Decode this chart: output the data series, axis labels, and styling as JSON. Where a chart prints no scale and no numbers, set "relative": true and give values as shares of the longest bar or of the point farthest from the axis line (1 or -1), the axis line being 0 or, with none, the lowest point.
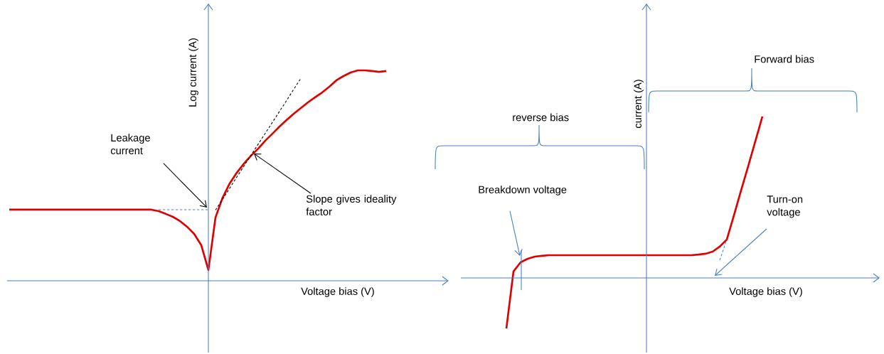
{
  "chart_data": [
    {
      "type": "line",
      "relative": true,
      "ylabel": "Log current (A)",
      "xlabel": "Voltage bias (V)",
      "categories": [
        null,
        null,
        null,
        null,
        null,
        null,
        null,
        null,
        null,
        null,
        null,
        null,
        null,
        null,
        null,
        null,
        null,
        null,
        null,
        null,
        null,
        null,
        null,
        null,
        null,
        null,
        null,
        null,
        null,
        null,
        null,
        null,
        null,
        null,
        null,
        null,
        null,
        null,
        null,
        null,
        null,
        null,
        null,
        null,
        null,
        null,
        null,
        null,
        null,
        null,
        null,
        null,
        null,
        null
      ],
      "series": [
        {
          "color": "#e00000",
          "values": [
            0.338,
            0.338,
            0.338,
            0.338,
            0.338,
            0.338,
            0.338,
            0.338,
            0.338,
            0.338,
            0.338,
            0.338,
            0.338,
            0.338,
            0.338,
            0.338,
            0.338,
            0.338,
            0.338,
            0.338,
            0.338,
            0.331,
            0.318,
            0.304,
            0.284,
            0.257,
            0.223,
            0.169,
            0.051,
            0.301,
            0.395,
            0.463,
            0.514,
            0.557,
            0.595,
            0.628,
            0.666,
            0.699,
            0.733,
            0.764,
            0.794,
            0.821,
            0.848,
            0.872,
            0.895,
            0.922,
            0.953,
            0.973,
            0.99,
            1.0,
            1.0,
            0.997,
            0.993,
            0.997
          ]
        },
        {
          "color": "#000000",
          "line_style": "dashed",
          "values": [
            null,
            null,
            null,
            null,
            null,
            null,
            null,
            null,
            null,
            null,
            null,
            null,
            null,
            null,
            null,
            null,
            null,
            null,
            null,
            null,
            null,
            null,
            null,
            null,
            null,
            null,
            null,
            null,
            null,
            0.336,
            0.388,
            0.44,
            0.493,
            0.545,
            0.597,
            0.649,
            0.701,
            0.753,
            0.805,
            0.857,
            0.91,
            0.962,
            null,
            null,
            null,
            null,
            null,
            null,
            null,
            null,
            null,
            null,
            null,
            null
          ]
        },
        {
          "color": "#4f81bd",
          "line_style": "dashed",
          "values": [
            null,
            null,
            null,
            null,
            null,
            null,
            null,
            null,
            null,
            null,
            null,
            null,
            null,
            null,
            null,
            null,
            null,
            null,
            null,
            null,
            null,
            0.338,
            0.338,
            0.338,
            0.338,
            0.338,
            0.338,
            0.338,
            0.338,
            null,
            null,
            null,
            null,
            null,
            null,
            null,
            null,
            null,
            null,
            null,
            null,
            null,
            null,
            null,
            null,
            null,
            null,
            null,
            null,
            null,
            null,
            null,
            null,
            null
          ]
        }
      ],
      "annotations": [
        "Leakage current",
        "Slope gives ideality factor"
      ]
    },
    {
      "type": "line",
      "relative": true,
      "ylabel": "current (A)",
      "xlabel": "Voltage bias (V)",
      "categories": [
        null,
        null,
        null,
        null,
        null,
        null,
        null,
        null,
        null,
        null,
        null,
        null,
        null,
        null,
        null,
        null,
        null,
        null,
        null,
        null,
        null,
        null,
        null,
        null,
        null,
        null,
        null,
        null,
        null,
        null,
        null,
        null,
        null,
        null,
        null,
        null,
        null
      ],
      "series": [
        {
          "color": "#e00000",
          "values": [
            -0.313,
            0.04,
            0.097,
            0.119,
            0.132,
            0.137,
            0.141,
            0.141,
            0.141,
            0.141,
            0.141,
            0.141,
            0.141,
            0.141,
            0.141,
            0.141,
            0.141,
            0.141,
            0.141,
            0.141,
            0.141,
            0.141,
            0.141,
            0.141,
            0.141,
            0.141,
            0.141,
            0.145,
            0.15,
            0.163,
            0.194,
            0.238,
            0.388,
            0.542,
            0.692,
            0.846,
            1.0
          ]
        },
        {
          "color": "#4f81bd",
          "line_style": "dashed",
          "values": [
            null,
            null,
            null,
            null,
            null,
            null,
            null,
            null,
            null,
            null,
            null,
            null,
            null,
            null,
            null,
            null,
            null,
            null,
            null,
            null,
            null,
            null,
            null,
            null,
            null,
            null,
            null,
            null,
            null,
            null,
            0.11,
            0.238,
            null,
            null,
            null,
            null,
            null
          ]
        }
      ],
      "ref_lines": [
        {
          "axis": "y",
          "value": 0,
          "color": "#4a7ebb"
        }
      ],
      "annotations": [
        "reverse bias",
        "Forward bias",
        "Breakdown voltage",
        "Turn-on voltage"
      ]
    }
  ]
}
